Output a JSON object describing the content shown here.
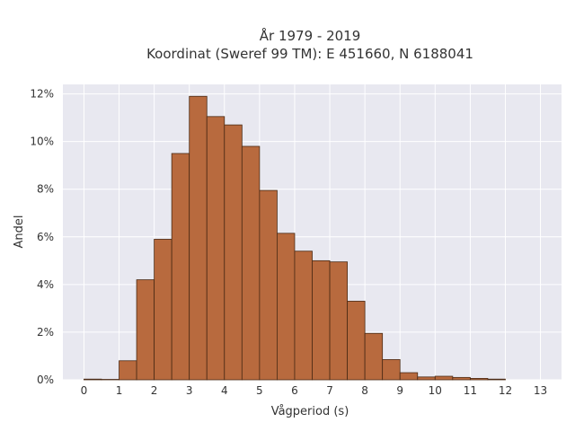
{
  "chart_data": {
    "type": "bar",
    "title_lines": [
      "År 1979 - 2019",
      "Koordinat (Sweref 99 TM): E 451660, N 6188041"
    ],
    "xlabel": "Vågperiod (s)",
    "ylabel": "Andel",
    "x_ticks": [
      "0",
      "1",
      "2",
      "3",
      "4",
      "5",
      "6",
      "7",
      "8",
      "9",
      "10",
      "11",
      "12",
      "13"
    ],
    "y_ticks": [
      "0%",
      "2%",
      "4%",
      "6%",
      "8%",
      "10%",
      "12%"
    ],
    "xlim": [
      -0.6,
      13.6
    ],
    "ylim": [
      0,
      12.4
    ],
    "bin_width": 0.5,
    "bins": [
      {
        "start": 0.0,
        "value": 0.03
      },
      {
        "start": 0.5,
        "value": 0.0
      },
      {
        "start": 1.0,
        "value": 0.8
      },
      {
        "start": 1.5,
        "value": 4.2
      },
      {
        "start": 2.0,
        "value": 5.9
      },
      {
        "start": 2.5,
        "value": 9.5
      },
      {
        "start": 3.0,
        "value": 11.9
      },
      {
        "start": 3.5,
        "value": 11.05
      },
      {
        "start": 4.0,
        "value": 10.7
      },
      {
        "start": 4.5,
        "value": 9.8
      },
      {
        "start": 5.0,
        "value": 7.95
      },
      {
        "start": 5.5,
        "value": 6.15
      },
      {
        "start": 6.0,
        "value": 5.4
      },
      {
        "start": 6.5,
        "value": 5.0
      },
      {
        "start": 7.0,
        "value": 4.95
      },
      {
        "start": 7.5,
        "value": 3.3
      },
      {
        "start": 8.0,
        "value": 1.95
      },
      {
        "start": 8.5,
        "value": 0.85
      },
      {
        "start": 9.0,
        "value": 0.3
      },
      {
        "start": 9.5,
        "value": 0.12
      },
      {
        "start": 10.0,
        "value": 0.15
      },
      {
        "start": 10.5,
        "value": 0.1
      },
      {
        "start": 11.0,
        "value": 0.06
      },
      {
        "start": 11.5,
        "value": 0.03
      }
    ],
    "grid": true,
    "colors": {
      "bar_fill": "#b86a3e",
      "bar_edge": "#4a2a14",
      "plot_bg": "#e8e8f0",
      "grid": "#ffffff"
    }
  }
}
